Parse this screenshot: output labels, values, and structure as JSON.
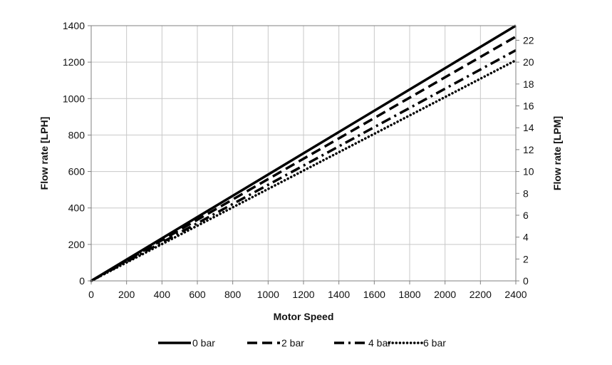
{
  "chart_data": {
    "type": "line",
    "title": "",
    "xlabel": "Motor Speed",
    "ylabel": "Flow rate [LPH]",
    "y2label": "Flow rate [LPM]",
    "xlim": [
      0,
      2400
    ],
    "ylim": [
      0,
      1400
    ],
    "y2lim": [
      0,
      23.333
    ],
    "x_ticks": [
      0,
      200,
      400,
      600,
      800,
      1000,
      1200,
      1400,
      1600,
      1800,
      2000,
      2200,
      2400
    ],
    "y_ticks": [
      0,
      200,
      400,
      600,
      800,
      1000,
      1200,
      1400
    ],
    "y2_ticks": [
      0,
      2,
      4,
      6,
      8,
      10,
      12,
      14,
      16,
      18,
      20,
      22
    ],
    "grid": true,
    "legend_position": "bottom",
    "series": [
      {
        "name": "0 bar",
        "style": "solid",
        "x": [
          0,
          2400
        ],
        "y": [
          0,
          1400
        ]
      },
      {
        "name": "2 bar",
        "style": "dashed",
        "x": [
          0,
          2400
        ],
        "y": [
          0,
          1340
        ]
      },
      {
        "name": "4 bar",
        "style": "dashdot",
        "x": [
          0,
          2400
        ],
        "y": [
          0,
          1265
        ]
      },
      {
        "name": "6 bar",
        "style": "dotted",
        "x": [
          0,
          2400
        ],
        "y": [
          0,
          1210
        ]
      }
    ],
    "line_color": "#000000",
    "grid_color": "#c8c8c8"
  }
}
